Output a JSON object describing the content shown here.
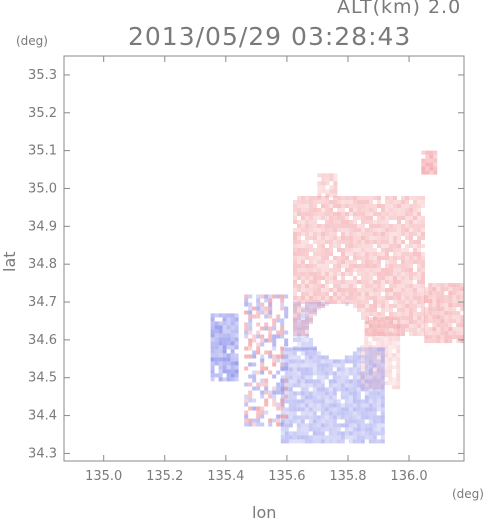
{
  "header": {
    "altitude": "ALT(km) 2.0",
    "timestamp": "2013/05/29 03:28:43"
  },
  "chart_data": {
    "type": "heatmap",
    "title": "2013/05/29 03:28:43",
    "subtitle": "ALT(km) 2.0",
    "xlabel": "lon",
    "ylabel": "lat",
    "x_unit": "(deg)",
    "y_unit": "(deg)",
    "xlim": [
      134.87,
      136.18
    ],
    "ylim": [
      34.28,
      35.35
    ],
    "x_ticks": [
      {
        "value": 135.0,
        "label": "135.0"
      },
      {
        "value": 135.2,
        "label": "135.2"
      },
      {
        "value": 135.4,
        "label": "135.4"
      },
      {
        "value": 135.6,
        "label": "135.6"
      },
      {
        "value": 135.8,
        "label": "135.8"
      },
      {
        "value": 136.0,
        "label": "136.0"
      }
    ],
    "y_ticks": [
      {
        "value": 34.3,
        "label": "34.3"
      },
      {
        "value": 34.4,
        "label": "34.4"
      },
      {
        "value": 34.5,
        "label": "34.5"
      },
      {
        "value": 34.6,
        "label": "34.6"
      },
      {
        "value": 34.7,
        "label": "34.7"
      },
      {
        "value": 34.8,
        "label": "34.8"
      },
      {
        "value": 34.9,
        "label": "34.9"
      },
      {
        "value": 35.0,
        "label": "35.0"
      },
      {
        "value": 35.1,
        "label": "35.1"
      },
      {
        "value": 35.2,
        "label": "35.2"
      },
      {
        "value": 35.3,
        "label": "35.3"
      }
    ],
    "colors": {
      "negative": "#9a9ff0",
      "positive": "#f3a3a6",
      "neutral": "#ffffff",
      "axis": "#8a8a8a"
    },
    "regions": [
      {
        "lon": [
          135.62,
          136.05
        ],
        "lat": [
          34.62,
          34.98
        ],
        "sign": "positive",
        "intensity": 0.45
      },
      {
        "lon": [
          136.05,
          136.18
        ],
        "lat": [
          34.6,
          34.75
        ],
        "sign": "positive",
        "intensity": 0.5
      },
      {
        "lon": [
          135.84,
          135.97
        ],
        "lat": [
          34.48,
          34.66
        ],
        "sign": "positive",
        "intensity": 0.3
      },
      {
        "lon": [
          135.35,
          135.44
        ],
        "lat": [
          34.5,
          34.67
        ],
        "sign": "negative",
        "intensity": 0.75
      },
      {
        "lon": [
          135.58,
          135.92
        ],
        "lat": [
          34.33,
          34.58
        ],
        "sign": "negative",
        "intensity": 0.5
      },
      {
        "lon": [
          135.62,
          135.8
        ],
        "lat": [
          34.58,
          34.7
        ],
        "sign": "negative",
        "intensity": 0.35
      },
      {
        "lon": [
          135.46,
          135.6
        ],
        "lat": [
          34.38,
          34.72
        ],
        "sign": "mixed",
        "intensity": 0.6
      },
      {
        "lon": [
          135.7,
          135.76
        ],
        "lat": [
          34.98,
          35.04
        ],
        "sign": "positive",
        "intensity": 0.4
      },
      {
        "lon": [
          136.04,
          136.08
        ],
        "lat": [
          35.04,
          35.1
        ],
        "sign": "positive",
        "intensity": 0.6
      }
    ]
  }
}
